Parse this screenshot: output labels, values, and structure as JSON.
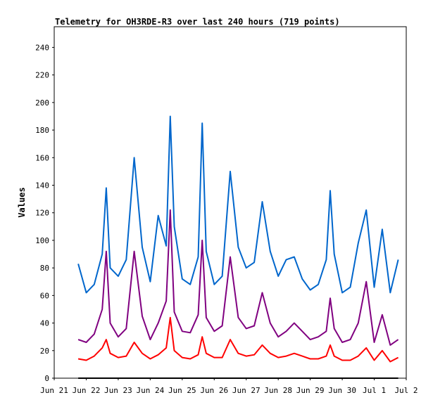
{
  "chart_data": {
    "type": "line",
    "title": "Telemetry for OH3RDE-R3 over last 240 hours (719 points)",
    "ylabel": "Values",
    "xlabel": "",
    "ylim": [
      0,
      255
    ],
    "yticks": [
      0,
      20,
      40,
      60,
      80,
      100,
      120,
      140,
      160,
      180,
      200,
      220,
      240
    ],
    "xlim": [
      "2024-06-21T00:00",
      "2024-07-02T00:00"
    ],
    "xticks": [
      {
        "label": "Jun 21",
        "day": 0
      },
      {
        "label": "Jun 22",
        "day": 1
      },
      {
        "label": "Jun 23",
        "day": 2
      },
      {
        "label": "Jun 24",
        "day": 3
      },
      {
        "label": "Jun 25",
        "day": 4
      },
      {
        "label": "Jun 26",
        "day": 5
      },
      {
        "label": "Jun 27",
        "day": 6
      },
      {
        "label": "Jun 28",
        "day": 7
      },
      {
        "label": "Jun 29",
        "day": 8
      },
      {
        "label": "Jun 30",
        "day": 9
      },
      {
        "label": "Jul 1",
        "day": 10
      },
      {
        "label": "Jul 2",
        "day": 11
      }
    ],
    "grid": false,
    "legend": "none",
    "series": [
      {
        "color": "#0066cc",
        "x": [
          "2024-06-21T18:00",
          "2024-06-22T00:00",
          "2024-06-22T06:00",
          "2024-06-22T12:00",
          "2024-06-22T15:00",
          "2024-06-22T18:00",
          "2024-06-23T00:00",
          "2024-06-23T06:00",
          "2024-06-23T12:00",
          "2024-06-23T18:00",
          "2024-06-24T00:00",
          "2024-06-24T06:00",
          "2024-06-24T12:00",
          "2024-06-24T15:00",
          "2024-06-24T18:00",
          "2024-06-25T00:00",
          "2024-06-25T06:00",
          "2024-06-25T12:00",
          "2024-06-25T15:00",
          "2024-06-25T18:00",
          "2024-06-26T00:00",
          "2024-06-26T06:00",
          "2024-06-26T12:00",
          "2024-06-26T18:00",
          "2024-06-27T00:00",
          "2024-06-27T06:00",
          "2024-06-27T12:00",
          "2024-06-27T18:00",
          "2024-06-28T00:00",
          "2024-06-28T06:00",
          "2024-06-28T12:00",
          "2024-06-28T18:00",
          "2024-06-29T00:00",
          "2024-06-29T06:00",
          "2024-06-29T12:00",
          "2024-06-29T15:00",
          "2024-06-29T18:00",
          "2024-06-30T00:00",
          "2024-06-30T06:00",
          "2024-06-30T12:00",
          "2024-06-30T18:00",
          "2024-07-01T00:00",
          "2024-07-01T06:00",
          "2024-07-01T12:00",
          "2024-07-01T18:00"
        ],
        "y": [
          83,
          62,
          68,
          90,
          138,
          80,
          74,
          86,
          160,
          95,
          70,
          118,
          96,
          190,
          110,
          72,
          68,
          88,
          185,
          92,
          68,
          74,
          150,
          95,
          80,
          84,
          128,
          92,
          74,
          86,
          88,
          72,
          64,
          68,
          86,
          136,
          90,
          62,
          66,
          98,
          122,
          66,
          108,
          62,
          86
        ]
      },
      {
        "color": "#800080",
        "x": [
          "2024-06-21T18:00",
          "2024-06-22T00:00",
          "2024-06-22T06:00",
          "2024-06-22T12:00",
          "2024-06-22T15:00",
          "2024-06-22T18:00",
          "2024-06-23T00:00",
          "2024-06-23T06:00",
          "2024-06-23T12:00",
          "2024-06-23T18:00",
          "2024-06-24T00:00",
          "2024-06-24T06:00",
          "2024-06-24T12:00",
          "2024-06-24T15:00",
          "2024-06-24T18:00",
          "2024-06-25T00:00",
          "2024-06-25T06:00",
          "2024-06-25T12:00",
          "2024-06-25T15:00",
          "2024-06-25T18:00",
          "2024-06-26T00:00",
          "2024-06-26T06:00",
          "2024-06-26T12:00",
          "2024-06-26T18:00",
          "2024-06-27T00:00",
          "2024-06-27T06:00",
          "2024-06-27T12:00",
          "2024-06-27T18:00",
          "2024-06-28T00:00",
          "2024-06-28T06:00",
          "2024-06-28T12:00",
          "2024-06-28T18:00",
          "2024-06-29T00:00",
          "2024-06-29T06:00",
          "2024-06-29T12:00",
          "2024-06-29T15:00",
          "2024-06-29T18:00",
          "2024-06-30T00:00",
          "2024-06-30T06:00",
          "2024-06-30T12:00",
          "2024-06-30T18:00",
          "2024-07-01T00:00",
          "2024-07-01T06:00",
          "2024-07-01T12:00",
          "2024-07-01T18:00"
        ],
        "y": [
          28,
          26,
          32,
          50,
          92,
          40,
          30,
          36,
          92,
          45,
          28,
          40,
          56,
          122,
          48,
          34,
          33,
          46,
          100,
          44,
          34,
          38,
          88,
          44,
          36,
          38,
          62,
          40,
          30,
          34,
          40,
          34,
          28,
          30,
          34,
          58,
          36,
          26,
          28,
          40,
          70,
          26,
          46,
          24,
          28
        ]
      },
      {
        "color": "#ff0000",
        "x": [
          "2024-06-21T18:00",
          "2024-06-22T00:00",
          "2024-06-22T06:00",
          "2024-06-22T12:00",
          "2024-06-22T15:00",
          "2024-06-22T18:00",
          "2024-06-23T00:00",
          "2024-06-23T06:00",
          "2024-06-23T12:00",
          "2024-06-23T18:00",
          "2024-06-24T00:00",
          "2024-06-24T06:00",
          "2024-06-24T12:00",
          "2024-06-24T15:00",
          "2024-06-24T18:00",
          "2024-06-25T00:00",
          "2024-06-25T06:00",
          "2024-06-25T12:00",
          "2024-06-25T15:00",
          "2024-06-25T18:00",
          "2024-06-26T00:00",
          "2024-06-26T06:00",
          "2024-06-26T12:00",
          "2024-06-26T18:00",
          "2024-06-27T00:00",
          "2024-06-27T06:00",
          "2024-06-27T12:00",
          "2024-06-27T18:00",
          "2024-06-28T00:00",
          "2024-06-28T06:00",
          "2024-06-28T12:00",
          "2024-06-28T18:00",
          "2024-06-29T00:00",
          "2024-06-29T06:00",
          "2024-06-29T12:00",
          "2024-06-29T15:00",
          "2024-06-29T18:00",
          "2024-06-30T00:00",
          "2024-06-30T06:00",
          "2024-06-30T12:00",
          "2024-06-30T18:00",
          "2024-07-01T00:00",
          "2024-07-01T06:00",
          "2024-07-01T12:00",
          "2024-07-01T18:00"
        ],
        "y": [
          14,
          13,
          16,
          22,
          28,
          18,
          15,
          16,
          26,
          18,
          14,
          17,
          22,
          44,
          20,
          15,
          14,
          17,
          30,
          18,
          15,
          15,
          28,
          18,
          16,
          17,
          24,
          18,
          15,
          16,
          18,
          16,
          14,
          14,
          16,
          24,
          16,
          13,
          13,
          16,
          22,
          13,
          20,
          12,
          15
        ]
      },
      {
        "color": "#000000",
        "x": [
          "2024-06-21T18:00",
          "2024-07-01T18:00"
        ],
        "y": [
          0,
          0
        ]
      }
    ]
  }
}
